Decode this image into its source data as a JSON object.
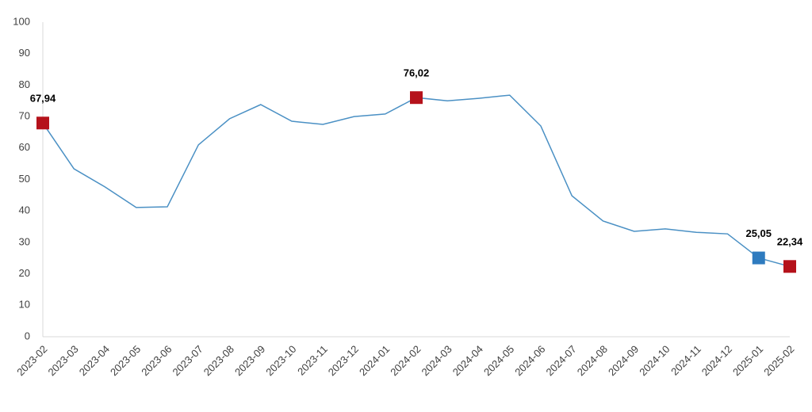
{
  "chart_data": {
    "type": "line",
    "x": [
      "2023-02",
      "2023-03",
      "2023-04",
      "2023-05",
      "2023-06",
      "2023-07",
      "2023-08",
      "2023-09",
      "2023-10",
      "2023-11",
      "2023-12",
      "2024-01",
      "2024-02",
      "2024-03",
      "2024-04",
      "2024-05",
      "2024-06",
      "2024-07",
      "2024-08",
      "2024-09",
      "2024-10",
      "2024-11",
      "2024-12",
      "2025-01",
      "2025-02"
    ],
    "series": [
      {
        "color": "#4a90c4",
        "values": [
          67.94,
          53.4,
          47.6,
          41.1,
          41.3,
          61.0,
          69.3,
          73.8,
          68.5,
          67.5,
          70.0,
          70.8,
          76.02,
          75.0,
          75.8,
          76.8,
          67.0,
          44.8,
          36.8,
          33.5,
          34.3,
          33.2,
          32.7,
          25.05,
          22.34
        ],
        "value_labels": [
          "67,94",
          null,
          null,
          null,
          null,
          null,
          null,
          null,
          null,
          null,
          null,
          null,
          "76,02",
          null,
          null,
          null,
          null,
          null,
          null,
          null,
          null,
          null,
          null,
          "25,05",
          "22,34"
        ],
        "marker_colors": [
          "#b5121b",
          null,
          null,
          null,
          null,
          null,
          null,
          null,
          null,
          null,
          null,
          null,
          "#b5121b",
          null,
          null,
          null,
          null,
          null,
          null,
          null,
          null,
          null,
          null,
          "#2e7bbf",
          "#b5121b"
        ]
      }
    ],
    "ylim": [
      0,
      100
    ],
    "yticks": [
      0,
      10,
      20,
      30,
      40,
      50,
      60,
      70,
      80,
      90,
      100
    ],
    "grid": false
  }
}
